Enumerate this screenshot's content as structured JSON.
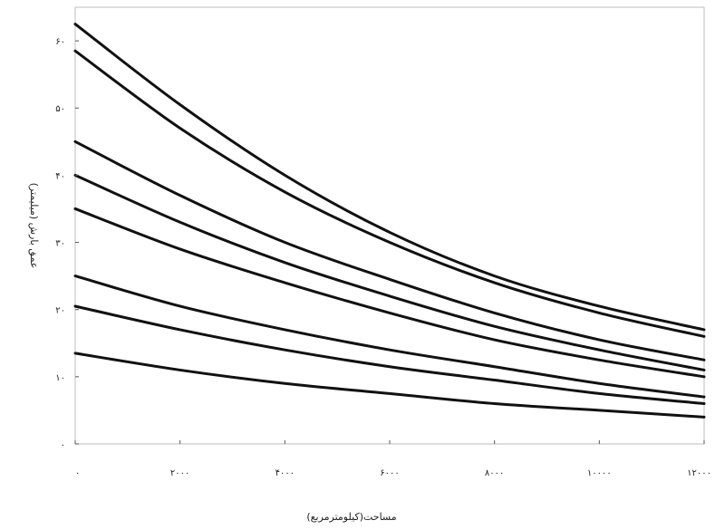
{
  "chart_data": {
    "type": "line",
    "title": "",
    "xlabel": "مساحت(کیلومترمربع)",
    "ylabel": "عمق بارش (میلیمتر)",
    "xlim": [
      0,
      12000
    ],
    "ylim": [
      0,
      65
    ],
    "x_ticks": [
      0,
      2000,
      4000,
      6000,
      8000,
      10000,
      12000
    ],
    "x_tick_labels": [
      "۰",
      "۲۰۰۰",
      "۴۰۰۰",
      "۶۰۰۰",
      "۸۰۰۰",
      "۱۰۰۰۰",
      "۱۲۰۰۰"
    ],
    "y_ticks": [
      0,
      10,
      20,
      30,
      40,
      50,
      60
    ],
    "y_tick_labels": [
      "۰",
      "۱۰",
      "۲۰",
      "۳۰",
      "۴۰",
      "۵۰",
      "۶۰"
    ],
    "grid": false,
    "legend": "none",
    "x": [
      0,
      2000,
      4000,
      6000,
      8000,
      10000,
      12000
    ],
    "series": [
      {
        "values": [
          62.5,
          50.5,
          40.0,
          31.5,
          25.0,
          20.5,
          17.0
        ]
      },
      {
        "values": [
          58.5,
          47.0,
          37.5,
          30.0,
          24.0,
          19.5,
          16.0
        ]
      },
      {
        "values": [
          45.0,
          37.0,
          30.0,
          24.5,
          19.5,
          15.5,
          12.5
        ]
      },
      {
        "values": [
          40.0,
          33.0,
          27.0,
          22.0,
          17.5,
          14.0,
          11.0
        ]
      },
      {
        "values": [
          35.0,
          29.0,
          24.0,
          19.5,
          15.5,
          12.5,
          10.0
        ]
      },
      {
        "values": [
          25.0,
          20.5,
          17.0,
          14.0,
          11.5,
          9.0,
          7.0
        ]
      },
      {
        "values": [
          20.5,
          17.0,
          14.0,
          11.5,
          9.5,
          7.5,
          6.0
        ]
      },
      {
        "values": [
          13.5,
          11.0,
          9.0,
          7.5,
          6.0,
          5.0,
          4.0
        ]
      }
    ],
    "line_color": "#111111"
  }
}
